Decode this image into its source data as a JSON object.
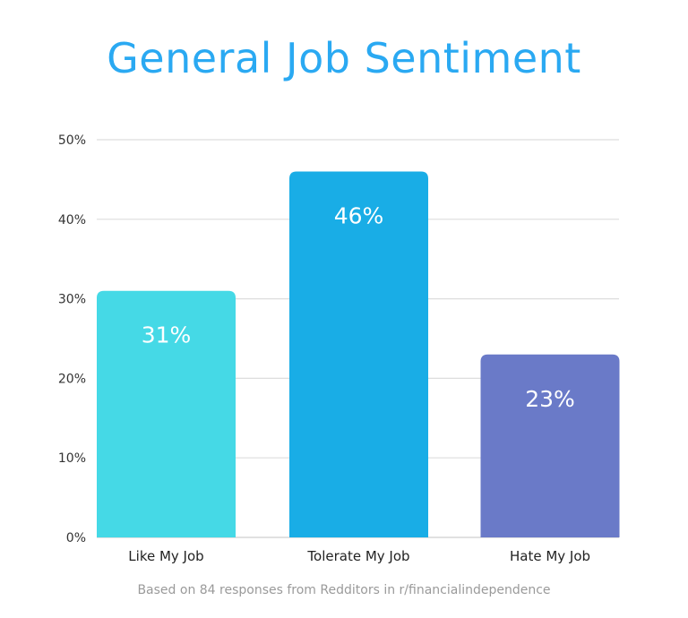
{
  "chart_data": {
    "type": "bar",
    "title": "General Job Sentiment",
    "categories": [
      "Like My Job",
      "Tolerate My Job",
      "Hate My Job"
    ],
    "values": [
      31,
      46,
      23
    ],
    "data_labels": [
      "31%",
      "46%",
      "23%"
    ],
    "colors": [
      "#45d9e6",
      "#19ade6",
      "#6a7ac8"
    ],
    "ylim": [
      0,
      50
    ],
    "yticks": [
      0,
      10,
      20,
      30,
      40,
      50
    ],
    "ytick_labels": [
      "0%",
      "10%",
      "20%",
      "30%",
      "40%",
      "50%"
    ],
    "grid": true,
    "xlabel": "",
    "ylabel": "",
    "footnote": "Based on 84 responses from Redditors in r/financialindependence"
  }
}
